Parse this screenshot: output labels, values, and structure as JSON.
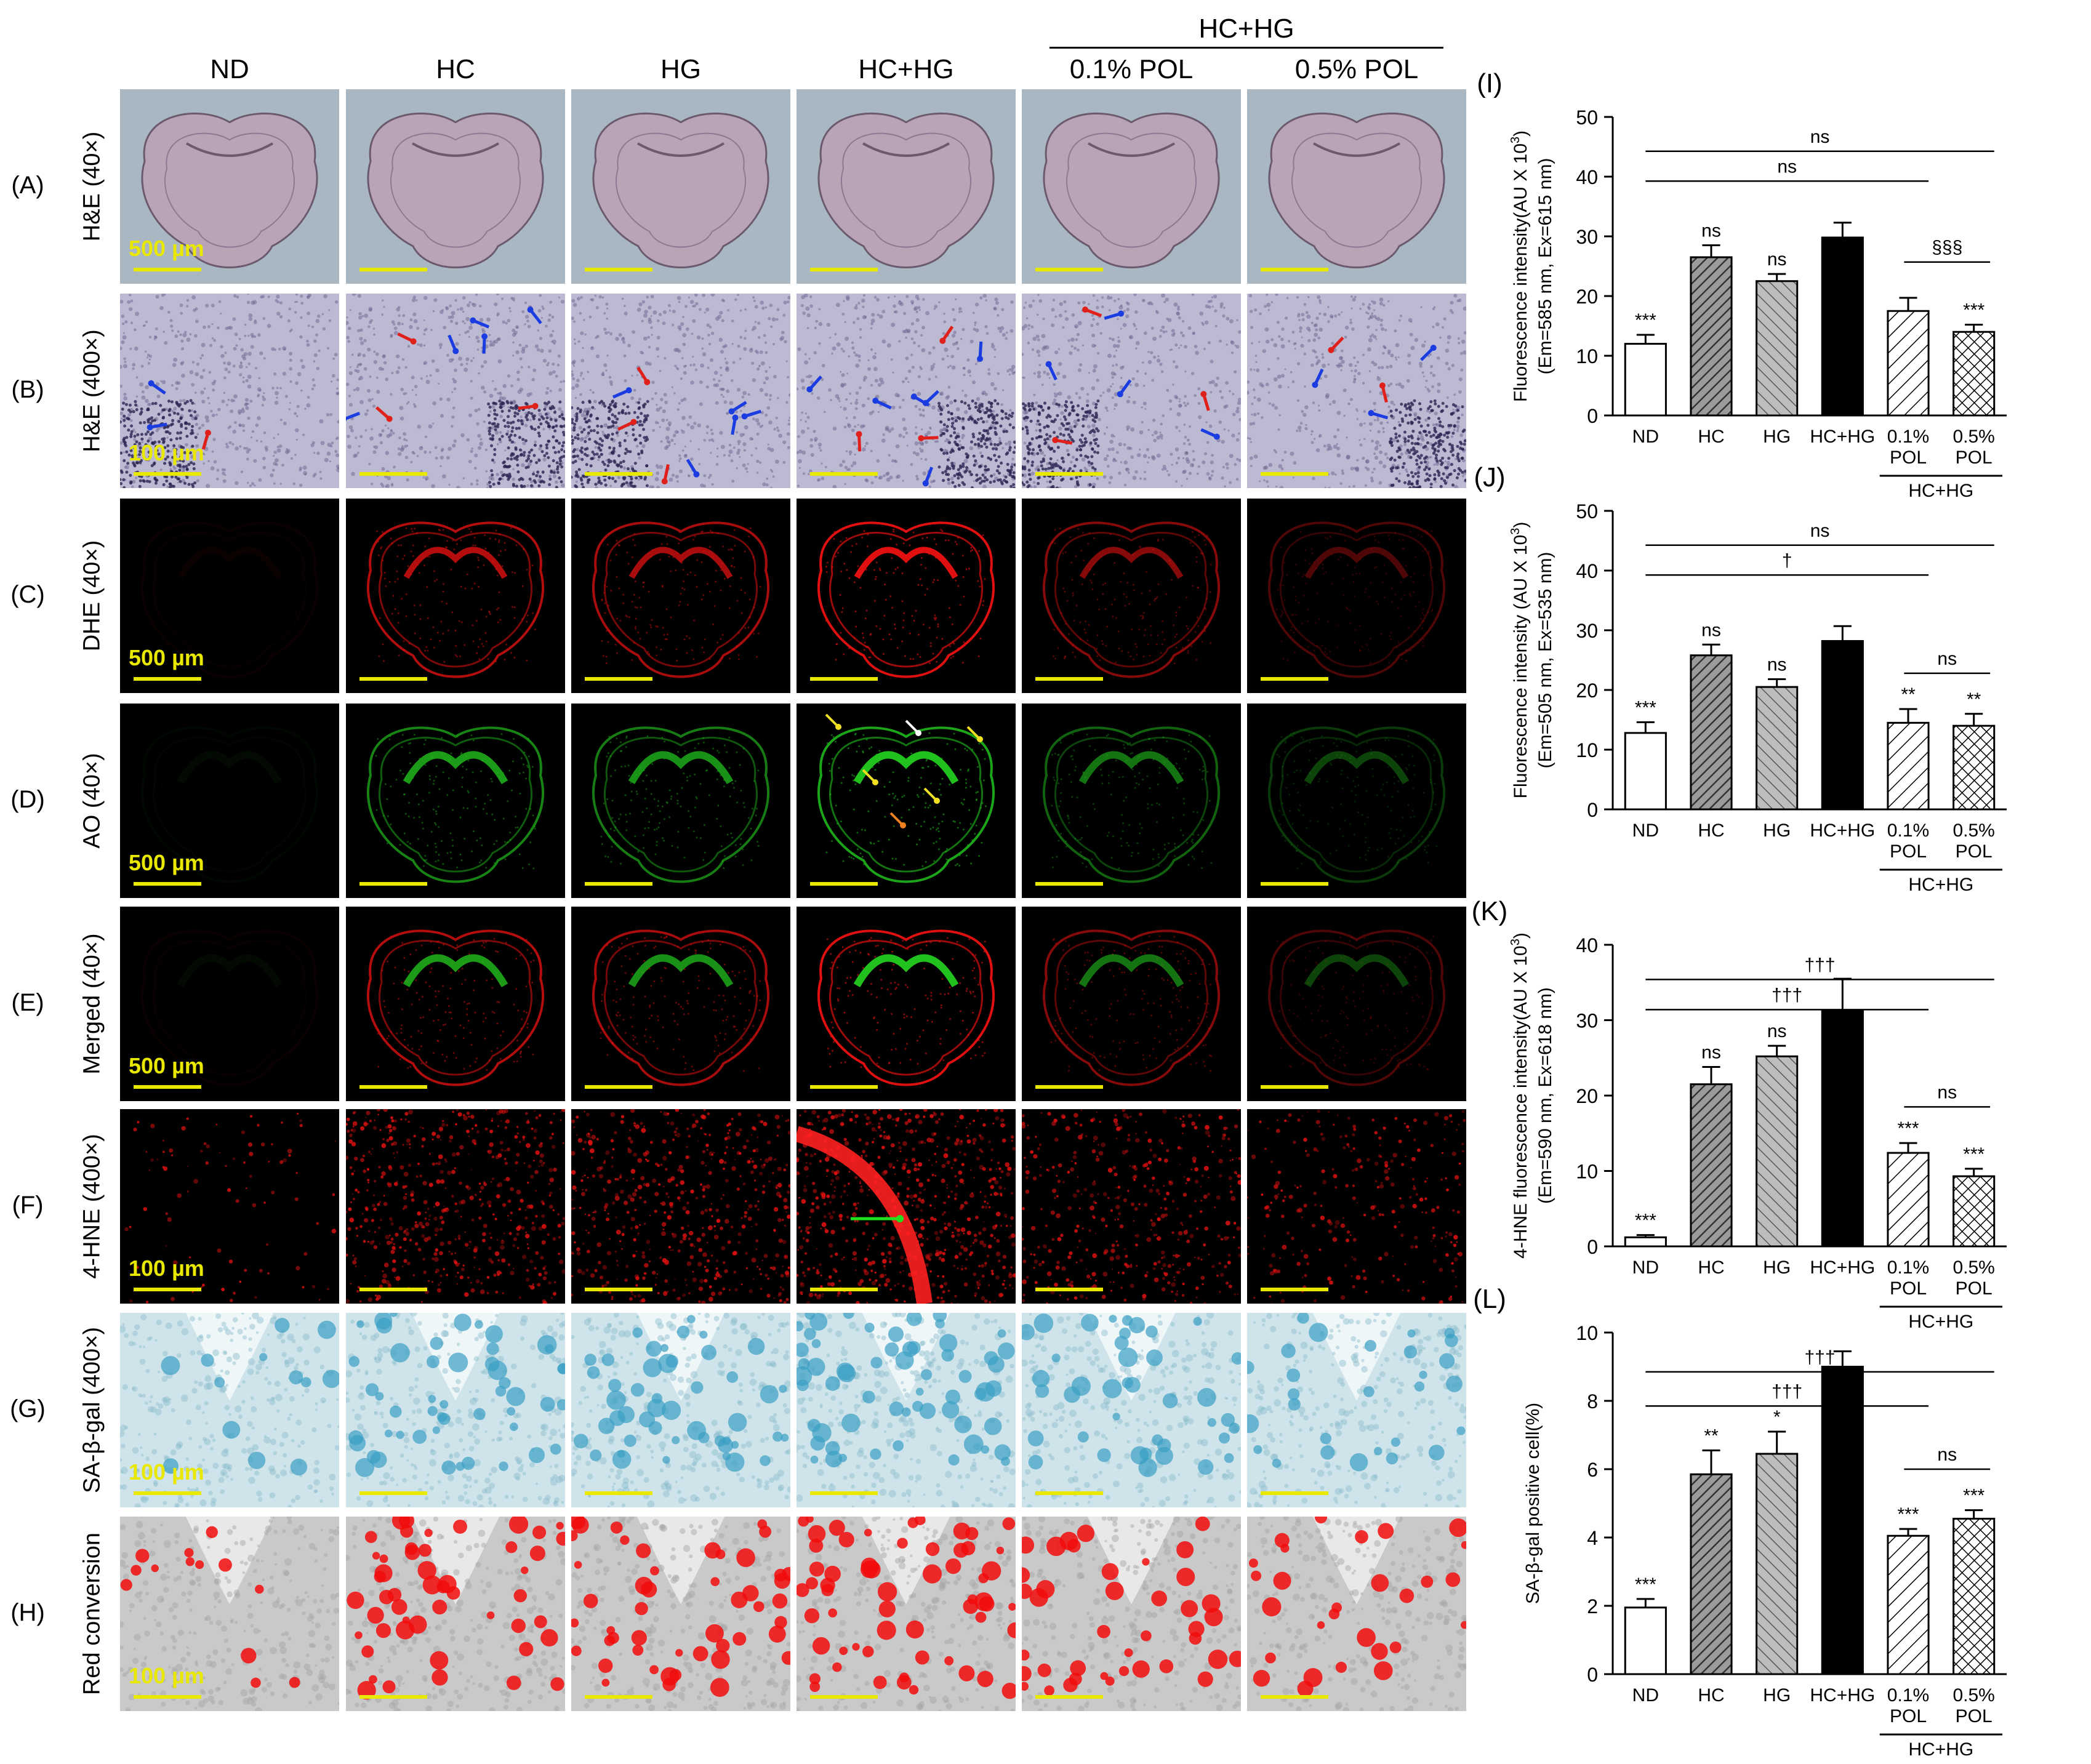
{
  "header": {
    "top_group_label": "HC+HG",
    "columns": [
      "ND",
      "HC",
      "HG",
      "HC+HG",
      "0.1% POL",
      "0.5% POL"
    ]
  },
  "rows": [
    {
      "letter": "(A)",
      "stain": "H&E (40×)",
      "scale": "500 µm",
      "kind": "he_low"
    },
    {
      "letter": "(B)",
      "stain": "H&E (400×)",
      "scale": "100 µm",
      "kind": "he_high"
    },
    {
      "letter": "(C)",
      "stain": "DHE (40×)",
      "scale": "500 µm",
      "kind": "dhe"
    },
    {
      "letter": "(D)",
      "stain": "AO (40×)",
      "scale": "500 µm",
      "kind": "ao"
    },
    {
      "letter": "(E)",
      "stain": "Merged (40×)",
      "scale": "500 µm",
      "kind": "merged"
    },
    {
      "letter": "(F)",
      "stain": "4-HNE (400×)",
      "scale": "100 µm",
      "kind": "hne"
    },
    {
      "letter": "(G)",
      "stain": "SA-β-gal (400×)",
      "scale": "100 µm",
      "kind": "sagal"
    },
    {
      "letter": "(H)",
      "stain": "Red conversion",
      "scale": "100 µm",
      "kind": "redconv"
    }
  ],
  "colors": {
    "scale_bar": "#e9e800",
    "he_bg": "#a8b7c2",
    "tissue": "#b8a4b6",
    "dhe_red": "#e01010",
    "ao_green": "#22c21e",
    "sagal_blue": "#3aa0c4",
    "conv_red": "#f20c0c"
  },
  "chart_data": [
    {
      "panel": "(I)",
      "type": "bar",
      "categories": [
        "ND",
        "HC",
        "HG",
        "HC+HG",
        "0.1%\nPOL",
        "0.5%\nPOL"
      ],
      "values": [
        12,
        26.5,
        22.5,
        29.8,
        17.5,
        14
      ],
      "errors": [
        1.5,
        2.0,
        1.2,
        2.5,
        2.2,
        1.2
      ],
      "annotations": [
        "***",
        "ns",
        "ns",
        "",
        "",
        "***"
      ],
      "ylabel_lines": [
        "Fluorescence intensity(AU X 10^3)",
        "(Em=585 nm, Ex=615 nm)"
      ],
      "ylim": [
        0,
        50
      ],
      "yticks": [
        0,
        10,
        20,
        30,
        40,
        50
      ],
      "group_label": "HC+HG",
      "brackets": [
        {
          "from": 0,
          "to": 5,
          "text": "ns",
          "level": 0
        },
        {
          "from": 0,
          "to": 4,
          "text": "ns",
          "level": 1
        },
        {
          "from": 4,
          "to": 5,
          "text": "§§§",
          "level": 2
        }
      ]
    },
    {
      "panel": "(J)",
      "type": "bar",
      "categories": [
        "ND",
        "HC",
        "HG",
        "HC+HG",
        "0.1%\nPOL",
        "0.5%\nPOL"
      ],
      "values": [
        12.8,
        25.8,
        20.5,
        28.2,
        14.5,
        14
      ],
      "errors": [
        1.8,
        1.8,
        1.3,
        2.5,
        2.3,
        2.0
      ],
      "annotations": [
        "***",
        "ns",
        "ns",
        "",
        "**",
        "**"
      ],
      "ylabel_lines": [
        "Fluorescence intensity (AU X 10^3)",
        "(Em=505 nm, Ex=535 nm)"
      ],
      "ylim": [
        0,
        50
      ],
      "yticks": [
        0,
        10,
        20,
        30,
        40,
        50
      ],
      "group_label": "HC+HG",
      "brackets": [
        {
          "from": 0,
          "to": 5,
          "text": "ns",
          "level": 0
        },
        {
          "from": 0,
          "to": 4,
          "text": "†",
          "level": 1
        },
        {
          "from": 4,
          "to": 5,
          "text": "ns",
          "level": 2
        }
      ]
    },
    {
      "panel": "(K)",
      "type": "bar",
      "categories": [
        "ND",
        "HC",
        "HG",
        "HC+HG",
        "0.1%\nPOL",
        "0.5%\nPOL"
      ],
      "values": [
        1.2,
        21.5,
        25.2,
        31.3,
        12.4,
        9.3
      ],
      "errors": [
        0.3,
        2.3,
        1.4,
        4.2,
        1.3,
        1.0
      ],
      "annotations": [
        "***",
        "ns",
        "ns",
        "",
        "***",
        "***"
      ],
      "ylabel_lines": [
        "4-HNE fluorescence intensity(AU X 10^3)",
        "(Em=590 nm, Ex=618 nm)"
      ],
      "ylim": [
        0,
        40
      ],
      "yticks": [
        0,
        10,
        20,
        30,
        40
      ],
      "group_label": "HC+HG",
      "brackets": [
        {
          "from": 0,
          "to": 5,
          "text": "†††",
          "level": 0
        },
        {
          "from": 0,
          "to": 4,
          "text": "†††",
          "level": 1
        },
        {
          "from": 4,
          "to": 5,
          "text": "ns",
          "level": 2
        }
      ]
    },
    {
      "panel": "(L)",
      "type": "bar",
      "categories": [
        "ND",
        "HC",
        "HG",
        "HC+HG",
        "0.1%\nPOL",
        "0.5%\nPOL"
      ],
      "values": [
        1.95,
        5.85,
        6.45,
        9.0,
        4.05,
        4.55
      ],
      "errors": [
        0.25,
        0.7,
        0.65,
        0.45,
        0.2,
        0.25
      ],
      "annotations": [
        "***",
        "**",
        "*",
        "",
        "***",
        "***"
      ],
      "ylabel_lines": [
        "SA-β-gal positive cell(%)"
      ],
      "ylim": [
        0,
        10
      ],
      "yticks": [
        0,
        2,
        4,
        6,
        8,
        10
      ],
      "group_label": "HC+HG",
      "brackets": [
        {
          "from": 0,
          "to": 5,
          "text": "†††",
          "level": 0
        },
        {
          "from": 0,
          "to": 4,
          "text": "†††",
          "level": 1
        },
        {
          "from": 4,
          "to": 5,
          "text": "ns",
          "level": 2
        }
      ]
    }
  ]
}
